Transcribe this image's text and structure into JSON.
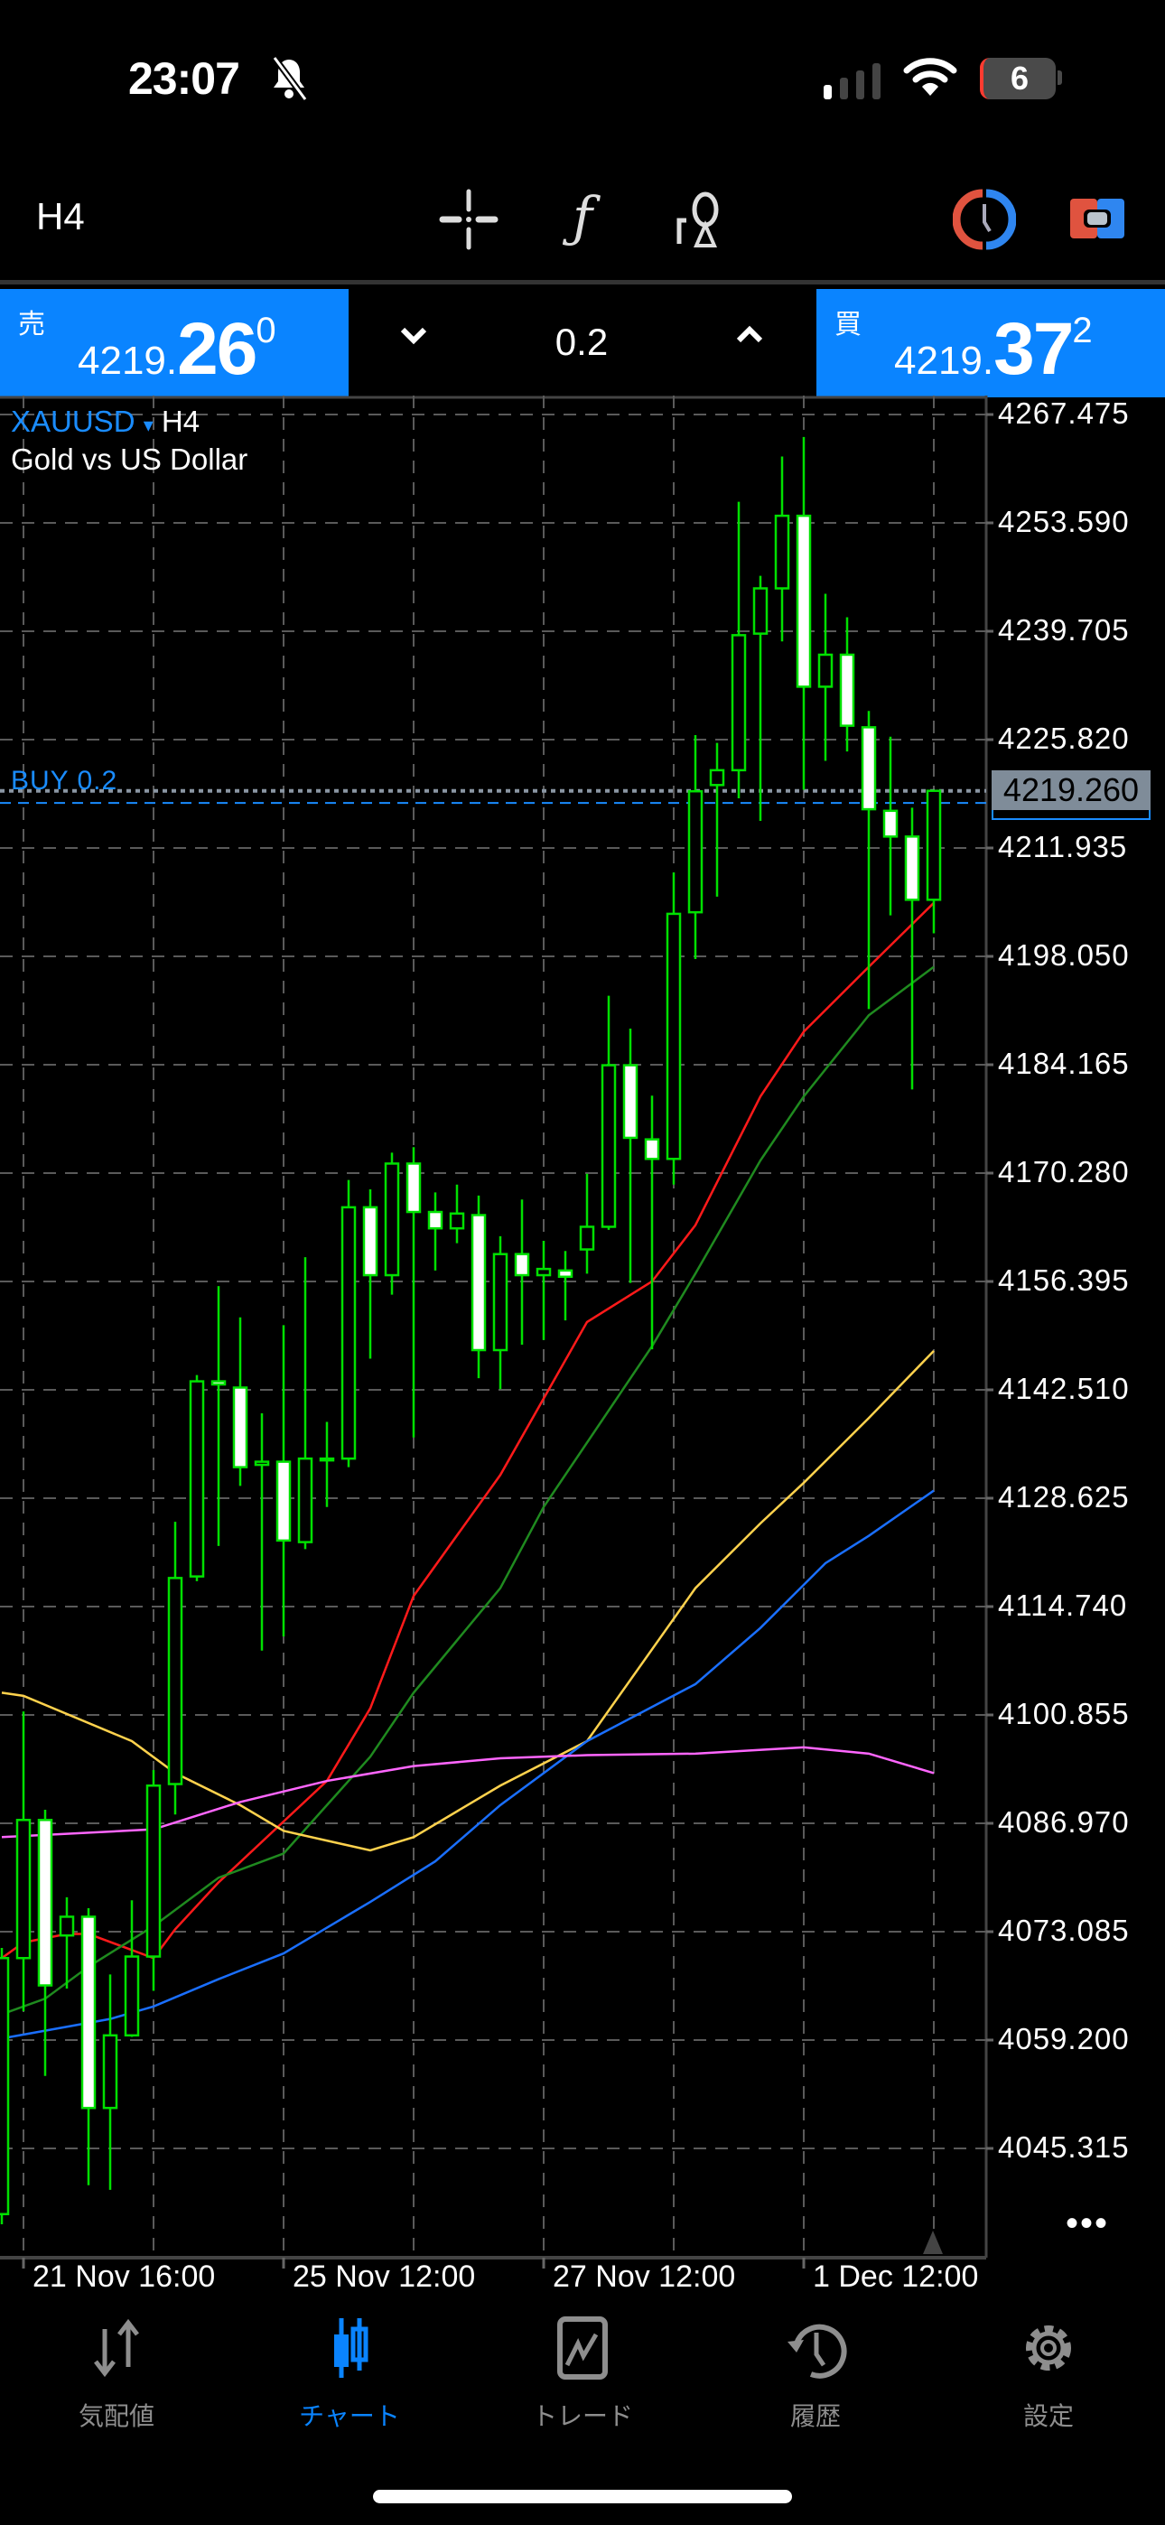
{
  "status_bar": {
    "time": "23:07",
    "battery": "6",
    "icons": [
      "bell-slash-icon",
      "cellular-signal-icon",
      "wifi-icon",
      "battery-icon"
    ]
  },
  "toolbar": {
    "timeframe": "H4",
    "icons": [
      "crosshair-icon",
      "indicator-f-icon",
      "objects-icon",
      "one-click-trading-icon",
      "trade-toggle-icon"
    ]
  },
  "quote": {
    "sell_label": "売",
    "sell_price_main": "4219.",
    "sell_price_big": "26",
    "sell_price_sup": "0",
    "volume": "0.2",
    "down_label": "⌄",
    "up_label": "⌃",
    "buy_label": "買",
    "buy_price_main": "4219.",
    "buy_price_big": "37",
    "buy_price_sup": "2",
    "color": "#0a84ff"
  },
  "chart": {
    "symbol": "XAUUSD",
    "symbol_arrow": "▾",
    "timeframe": "H4",
    "description": "Gold vs US Dollar",
    "order_line_label": "BUY 0.2",
    "current_price": "4219.260",
    "more_label": "•••"
  },
  "chart_data": {
    "type": "candlestick",
    "title": "",
    "y_ticks": [
      "4267.475",
      "4253.590",
      "4239.705",
      "4225.820",
      "4211.935",
      "4198.050",
      "4184.165",
      "4170.280",
      "4156.395",
      "4142.510",
      "4128.625",
      "4114.740",
      "4100.855",
      "4086.970",
      "4073.085",
      "4059.200",
      "4045.315"
    ],
    "ylim": [
      4036.3,
      4267.475
    ],
    "x_ticks": [
      {
        "index": 1,
        "label": "21 Nov 16:00"
      },
      {
        "index": 13,
        "label": "25 Nov 12:00"
      },
      {
        "index": 25,
        "label": "27 Nov 12:00"
      },
      {
        "index": 37,
        "label": "1 Dec 12:00"
      }
    ],
    "grid": true,
    "bid_price": 4219.26,
    "order_open_price": 4217.7,
    "candle_colors": {
      "bull": "#00e000",
      "bear_fill": "#ffffff",
      "outline": "#00e000"
    },
    "candles_ohlc": [
      [
        4036.9,
        4071.0,
        4035.6,
        4069.7
      ],
      [
        4069.7,
        4101.3,
        4062.9,
        4087.4
      ],
      [
        4087.4,
        4088.7,
        4054.6,
        4066.2
      ],
      [
        4072.6,
        4077.5,
        4065.8,
        4075.0
      ],
      [
        4075.0,
        4076.1,
        4040.6,
        4050.5
      ],
      [
        4050.5,
        4067.6,
        4040.0,
        4059.8
      ],
      [
        4059.8,
        4077.1,
        4059.6,
        4069.9
      ],
      [
        4069.9,
        4093.8,
        4065.5,
        4091.8
      ],
      [
        4092.0,
        4125.6,
        4088.1,
        4118.4
      ],
      [
        4118.6,
        4144.4,
        4118.0,
        4143.6
      ],
      [
        4143.6,
        4155.8,
        4122.5,
        4143.2
      ],
      [
        4142.8,
        4151.8,
        4130.2,
        4132.6
      ],
      [
        4132.9,
        4139.5,
        4109.1,
        4133.3
      ],
      [
        4133.3,
        4150.8,
        4110.9,
        4123.2
      ],
      [
        4123.0,
        4159.5,
        4122.1,
        4133.7
      ],
      [
        4133.5,
        4138.4,
        4127.5,
        4133.7
      ],
      [
        4133.7,
        4169.4,
        4132.6,
        4165.9
      ],
      [
        4165.9,
        4168.2,
        4146.5,
        4157.2
      ],
      [
        4157.2,
        4172.9,
        4154.7,
        4171.5
      ],
      [
        4171.5,
        4173.6,
        4136.4,
        4165.3
      ],
      [
        4165.3,
        4167.8,
        4157.8,
        4163.2
      ],
      [
        4163.2,
        4168.8,
        4161.3,
        4165.1
      ],
      [
        4164.9,
        4167.4,
        4144.0,
        4147.6
      ],
      [
        4147.6,
        4162.2,
        4142.6,
        4159.9
      ],
      [
        4159.9,
        4166.9,
        4148.3,
        4157.2
      ],
      [
        4157.2,
        4161.6,
        4148.9,
        4158.0
      ],
      [
        4157.8,
        4160.3,
        4151.4,
        4157.0
      ],
      [
        4160.5,
        4170.2,
        4157.4,
        4163.4
      ],
      [
        4163.4,
        4193.0,
        4163.0,
        4184.1
      ],
      [
        4184.1,
        4188.8,
        4156.2,
        4174.8
      ],
      [
        4174.6,
        4180.2,
        4147.7,
        4172.1
      ],
      [
        4172.1,
        4208.8,
        4168.8,
        4203.5
      ],
      [
        4203.7,
        4226.4,
        4197.7,
        4219.2
      ],
      [
        4220.0,
        4225.4,
        4205.7,
        4221.9
      ],
      [
        4221.9,
        4256.3,
        4218.3,
        4239.2
      ],
      [
        4239.4,
        4246.8,
        4215.4,
        4245.2
      ],
      [
        4245.2,
        4262.1,
        4238.4,
        4254.5
      ],
      [
        4254.5,
        4264.6,
        4219.4,
        4232.6
      ],
      [
        4232.6,
        4244.5,
        4223.1,
        4236.7
      ],
      [
        4236.7,
        4241.5,
        4224.3,
        4227.6
      ],
      [
        4227.4,
        4229.5,
        4191.3,
        4216.9
      ],
      [
        4216.7,
        4226.2,
        4203.3,
        4213.4
      ],
      [
        4213.4,
        4217.1,
        4181.0,
        4205.3
      ],
      [
        4205.3,
        4219.3,
        4201.0,
        4219.26
      ]
    ],
    "moving_averages": [
      {
        "color": "#ff1a1a",
        "points": [
          [
            0,
            4069.7
          ],
          [
            1,
            4071.7
          ],
          [
            3,
            4072.8
          ],
          [
            4,
            4072.8
          ],
          [
            7,
            4069.7
          ],
          [
            8,
            4073.4
          ],
          [
            10,
            4079.4
          ],
          [
            13,
            4087.2
          ],
          [
            15,
            4092.4
          ],
          [
            17,
            4101.7
          ],
          [
            19,
            4116.1
          ],
          [
            23,
            4131.6
          ],
          [
            27,
            4151.2
          ],
          [
            30,
            4156.4
          ],
          [
            32,
            4163.6
          ],
          [
            35,
            4180.1
          ],
          [
            37,
            4188.4
          ],
          [
            40,
            4196.7
          ],
          [
            43,
            4204.9
          ]
        ]
      },
      {
        "color": "#1f8a1f",
        "points": [
          [
            0,
            4062.5
          ],
          [
            2,
            4064.5
          ],
          [
            4,
            4068.6
          ],
          [
            7,
            4073.8
          ],
          [
            10,
            4080.0
          ],
          [
            13,
            4083.1
          ],
          [
            17,
            4095.5
          ],
          [
            19,
            4103.7
          ],
          [
            23,
            4117.1
          ],
          [
            25,
            4127.5
          ],
          [
            30,
            4148.1
          ],
          [
            32,
            4157.4
          ],
          [
            35,
            4171.9
          ],
          [
            37,
            4180.1
          ],
          [
            40,
            4190.5
          ],
          [
            43,
            4196.7
          ]
        ]
      },
      {
        "color": "#ffd24d",
        "points": [
          [
            0,
            4103.7
          ],
          [
            1,
            4103.3
          ],
          [
            6,
            4097.5
          ],
          [
            8,
            4093.4
          ],
          [
            11,
            4089.3
          ],
          [
            13,
            4086.0
          ],
          [
            17,
            4083.5
          ],
          [
            19,
            4085.2
          ],
          [
            23,
            4091.8
          ],
          [
            27,
            4097.5
          ],
          [
            32,
            4117.1
          ],
          [
            35,
            4125.4
          ],
          [
            37,
            4130.6
          ],
          [
            40,
            4138.9
          ],
          [
            43,
            4147.5
          ]
        ]
      },
      {
        "color": "#1a6fff",
        "points": [
          [
            0,
            4059.4
          ],
          [
            2,
            4060.4
          ],
          [
            5,
            4061.9
          ],
          [
            7,
            4063.5
          ],
          [
            10,
            4067.0
          ],
          [
            13,
            4070.3
          ],
          [
            17,
            4076.9
          ],
          [
            20,
            4082.1
          ],
          [
            23,
            4089.3
          ],
          [
            27,
            4097.5
          ],
          [
            32,
            4104.8
          ],
          [
            35,
            4112.0
          ],
          [
            38,
            4120.3
          ],
          [
            40,
            4123.8
          ],
          [
            43,
            4129.6
          ]
        ]
      },
      {
        "color": "#ff66ff",
        "points": [
          [
            0,
            4085.2
          ],
          [
            7,
            4086.2
          ],
          [
            11,
            4089.7
          ],
          [
            15,
            4092.4
          ],
          [
            19,
            4094.3
          ],
          [
            23,
            4095.3
          ],
          [
            27,
            4095.7
          ],
          [
            32,
            4095.9
          ],
          [
            37,
            4096.7
          ],
          [
            40,
            4095.9
          ],
          [
            43,
            4093.4
          ]
        ]
      }
    ]
  },
  "nav": {
    "items": [
      {
        "label": "気配値",
        "icon": "quotes-arrows-icon"
      },
      {
        "label": "チャート",
        "icon": "chart-candles-icon",
        "active": true
      },
      {
        "label": "トレード",
        "icon": "trade-icon"
      },
      {
        "label": "履歴",
        "icon": "history-icon"
      },
      {
        "label": "設定",
        "icon": "settings-gear-icon"
      }
    ],
    "active_color": "#0a84ff"
  }
}
